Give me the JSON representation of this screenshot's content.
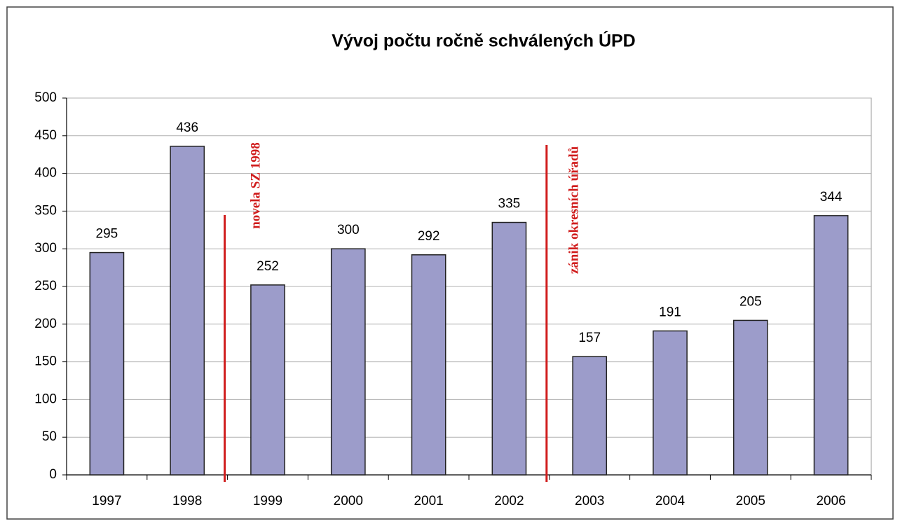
{
  "chart_data": {
    "type": "bar",
    "title": "Vývoj počtu ročně schválených ÚPD",
    "categories": [
      "1997",
      "1998",
      "1999",
      "2000",
      "2001",
      "2002",
      "2003",
      "2004",
      "2005",
      "2006"
    ],
    "values": [
      295,
      436,
      252,
      300,
      292,
      335,
      157,
      191,
      205,
      344
    ],
    "color": "#9c9cca",
    "ylim": [
      0,
      500
    ],
    "yticks": [
      0,
      50,
      100,
      150,
      200,
      250,
      300,
      350,
      400,
      450,
      500
    ],
    "grid": true,
    "annotations": [
      "novela SZ 1998",
      "zánik okresních úřadů"
    ]
  }
}
